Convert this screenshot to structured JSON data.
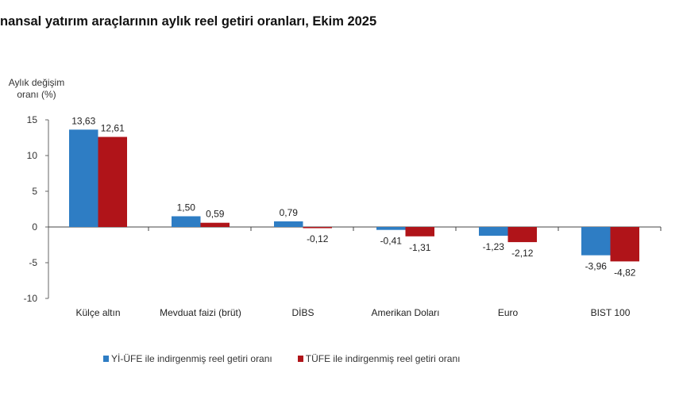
{
  "title": "nansal yatırım araçlarının aylık reel getiri oranları, Ekim 2025",
  "chart_data": {
    "type": "bar",
    "title": "nansal yatırım araçlarının aylık reel getiri oranları, Ekim 2025",
    "ylabel": "Aylık değişim oranı (%)",
    "xlabel": "",
    "ylim": [
      -10,
      15
    ],
    "yticks": [
      15,
      10,
      5,
      0,
      -5,
      -10
    ],
    "grid": false,
    "legend": "bottom",
    "categories": [
      "Külçe altın",
      "Mevduat faizi (brüt)",
      "DİBS",
      "Amerikan Doları",
      "Euro",
      "BIST 100"
    ],
    "series": [
      {
        "name": "Yİ-ÜFE ile indirgenmiş reel getiri oranı",
        "color": "#2e7dc4",
        "values": [
          13.63,
          1.5,
          0.79,
          -0.41,
          -1.23,
          -3.96
        ],
        "labels": [
          "13,63",
          "1,50",
          "0,79",
          "-0,41",
          "-1,23",
          "-3,96"
        ]
      },
      {
        "name": "TÜFE ile indirgenmiş reel getiri oranı",
        "color": "#b01419",
        "values": [
          12.61,
          0.59,
          -0.12,
          -1.31,
          -2.12,
          -4.82
        ],
        "labels": [
          "12,61",
          "0,59",
          "-0,12",
          "-1,31",
          "-2,12",
          "-4,82"
        ]
      }
    ]
  }
}
